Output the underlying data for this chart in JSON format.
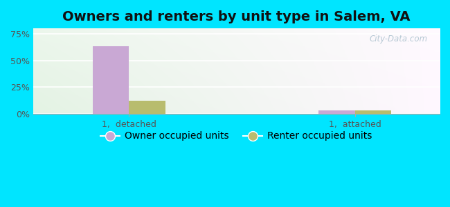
{
  "title": "Owners and renters by unit type in Salem, VA",
  "categories": [
    "1,  detached",
    "1,  attached"
  ],
  "owner_values": [
    63,
    3
  ],
  "renter_values": [
    12,
    3
  ],
  "owner_color": "#c9a8d4",
  "renter_color": "#b8bc6e",
  "yticks": [
    0,
    25,
    50,
    75
  ],
  "yticklabels": [
    "0%",
    "25%",
    "50%",
    "75%"
  ],
  "ylim": [
    0,
    80
  ],
  "bar_width": 0.32,
  "background_outer": "#00e5ff",
  "watermark": "City-Data.com",
  "legend_owner": "Owner occupied units",
  "legend_renter": "Renter occupied units",
  "title_fontsize": 14,
  "tick_fontsize": 9,
  "legend_fontsize": 10
}
